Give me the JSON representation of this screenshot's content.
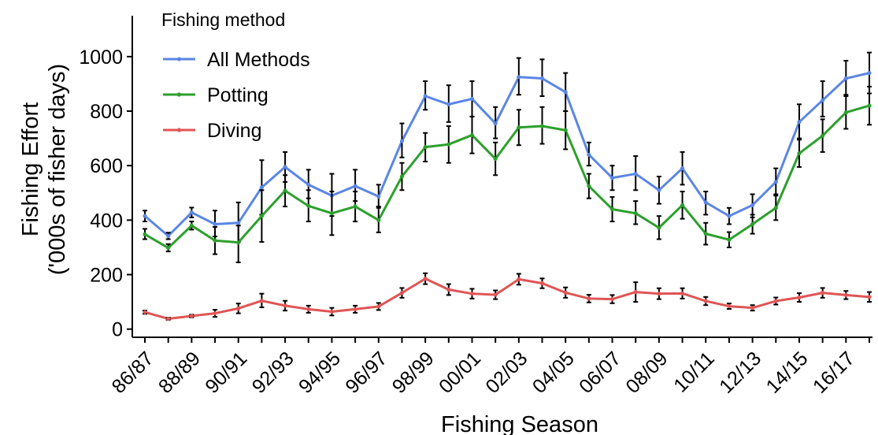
{
  "chart_data": {
    "type": "line",
    "xlabel": "Fishing Season",
    "ylabel_line1": "Fishing Effort",
    "ylabel_line2": "('000s of fisher days)",
    "ylim": [
      -30,
      1150
    ],
    "y_ticks": [
      0,
      200,
      400,
      600,
      800,
      1000
    ],
    "y_tick_labels": [
      "0",
      "200",
      "400",
      "600",
      "800",
      "1000"
    ],
    "x_tick_labels": [
      "86/87",
      "88/89",
      "90/91",
      "92/93",
      "94/95",
      "96/97",
      "98/99",
      "00/01",
      "02/03",
      "04/05",
      "06/07",
      "08/09",
      "10/11",
      "12/13",
      "14/15",
      "16/17"
    ],
    "grid": false,
    "legend": {
      "title": "Fishing method",
      "placement": "top-left"
    },
    "x": [
      "86/87",
      "87/88",
      "88/89",
      "89/90",
      "90/91",
      "91/92",
      "92/93",
      "93/94",
      "94/95",
      "95/96",
      "96/97",
      "97/98",
      "98/99",
      "99/00",
      "00/01",
      "01/02",
      "02/03",
      "03/04",
      "04/05",
      "05/06",
      "06/07",
      "07/08",
      "08/09",
      "09/10",
      "10/11",
      "11/12",
      "12/13",
      "13/14",
      "14/15",
      "15/16",
      "16/17",
      "17/18"
    ],
    "series": [
      {
        "name": "All Methods",
        "color": "#5b86e5",
        "values": [
          415,
          342,
          428,
          385,
          390,
          520,
          595,
          530,
          490,
          525,
          487,
          690,
          855,
          825,
          845,
          755,
          925,
          920,
          870,
          640,
          555,
          570,
          510,
          590,
          465,
          415,
          455,
          540,
          760,
          840,
          920,
          940
        ],
        "err_low": [
          395,
          330,
          410,
          340,
          320,
          420,
          540,
          480,
          415,
          470,
          445,
          630,
          805,
          760,
          780,
          700,
          860,
          855,
          800,
          600,
          510,
          510,
          460,
          530,
          420,
          385,
          410,
          495,
          700,
          780,
          860,
          865
        ],
        "err_high": [
          435,
          354,
          446,
          435,
          465,
          620,
          650,
          585,
          570,
          585,
          530,
          755,
          910,
          895,
          910,
          815,
          995,
          990,
          940,
          685,
          600,
          635,
          560,
          650,
          505,
          445,
          495,
          590,
          825,
          910,
          985,
          1015
        ]
      },
      {
        "name": "Potting",
        "color": "#2ca02c",
        "values": [
          348,
          298,
          380,
          325,
          318,
          415,
          508,
          452,
          425,
          450,
          400,
          560,
          668,
          678,
          712,
          625,
          740,
          745,
          730,
          525,
          440,
          425,
          372,
          455,
          350,
          328,
          385,
          445,
          645,
          710,
          795,
          820
        ],
        "err_low": [
          330,
          285,
          365,
          275,
          245,
          320,
          450,
          395,
          345,
          395,
          355,
          510,
          615,
          610,
          645,
          565,
          675,
          680,
          660,
          480,
          395,
          385,
          330,
          405,
          310,
          300,
          350,
          400,
          595,
          650,
          735,
          750
        ],
        "err_high": [
          368,
          312,
          395,
          375,
          380,
          510,
          565,
          510,
          505,
          505,
          450,
          610,
          720,
          745,
          780,
          685,
          805,
          815,
          800,
          570,
          485,
          470,
          415,
          505,
          390,
          356,
          420,
          490,
          695,
          770,
          855,
          890
        ]
      },
      {
        "name": "Diving",
        "color": "#e05555",
        "values": [
          62,
          38,
          48,
          58,
          76,
          104,
          86,
          73,
          64,
          73,
          83,
          133,
          185,
          145,
          130,
          126,
          183,
          168,
          134,
          112,
          110,
          136,
          130,
          131,
          103,
          84,
          78,
          103,
          116,
          133,
          125,
          118
        ],
        "err_low": [
          56,
          34,
          43,
          45,
          58,
          80,
          68,
          60,
          50,
          60,
          70,
          115,
          165,
          125,
          112,
          110,
          163,
          150,
          115,
          98,
          95,
          100,
          110,
          112,
          88,
          74,
          68,
          90,
          100,
          115,
          110,
          100
        ],
        "err_high": [
          68,
          42,
          53,
          71,
          94,
          130,
          104,
          86,
          78,
          86,
          96,
          151,
          205,
          165,
          148,
          142,
          203,
          186,
          153,
          126,
          125,
          172,
          150,
          150,
          118,
          94,
          88,
          116,
          132,
          151,
          140,
          136
        ]
      }
    ]
  }
}
